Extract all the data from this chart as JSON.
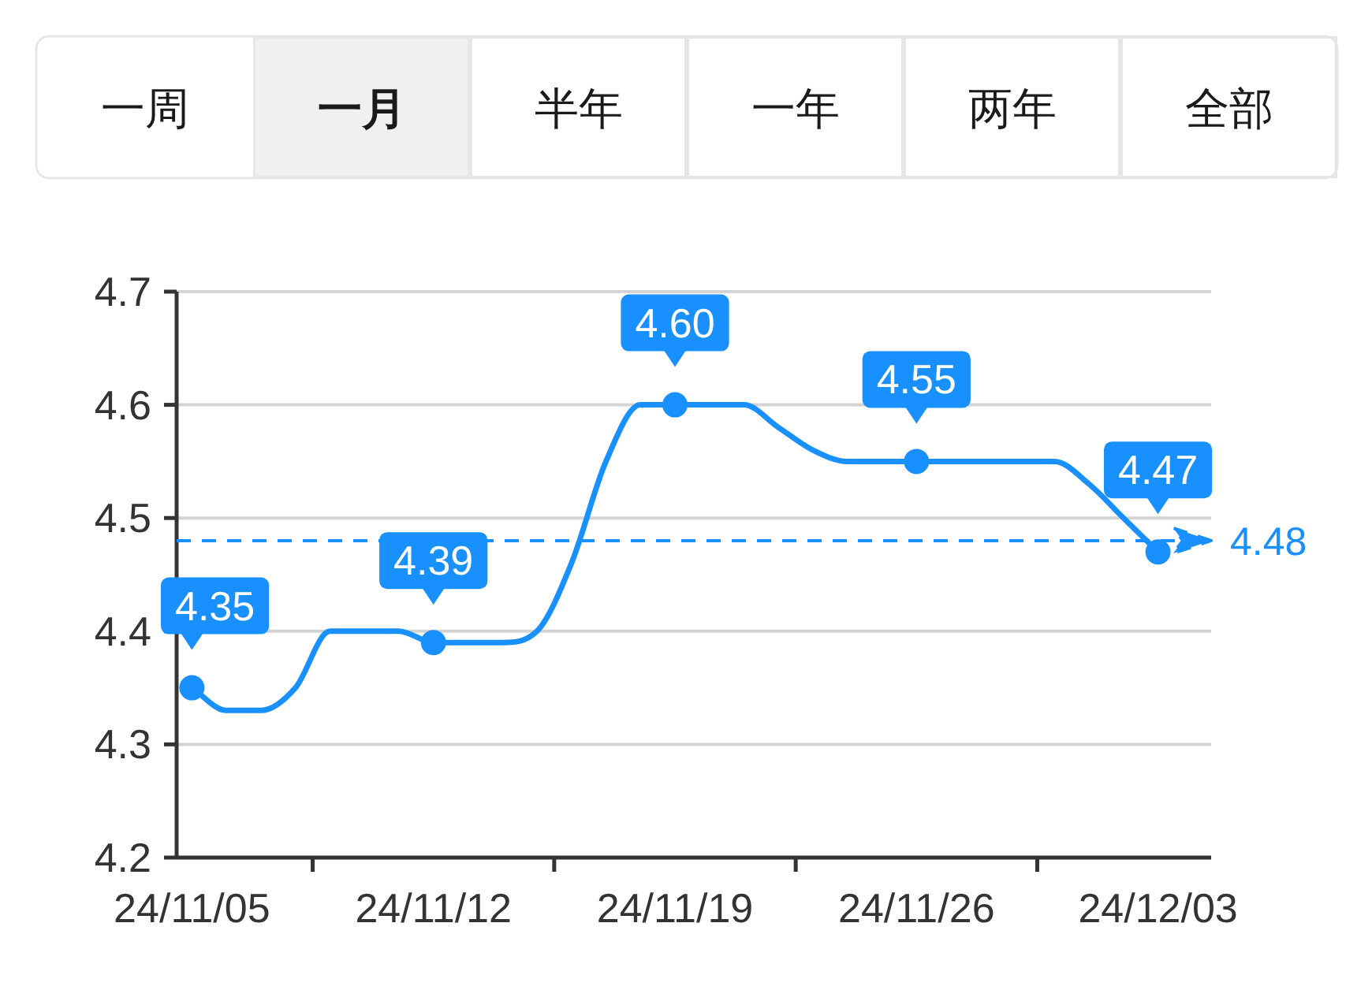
{
  "chart_data": [
    {
      "type": "other",
      "annotations": [
        "一周",
        "一月",
        "半年",
        "一年",
        "两年",
        "全部"
      ]
    },
    {
      "type": "line",
      "categories": [
        "24/11/05",
        null,
        null,
        null,
        null,
        null,
        null,
        "24/11/12",
        null,
        null,
        null,
        null,
        null,
        null,
        "24/11/19",
        null,
        null,
        null,
        null,
        null,
        null,
        "24/11/26",
        null,
        null,
        null,
        null,
        null,
        null,
        "24/12/03"
      ],
      "series": [
        {
          "color": "#1890ff",
          "values": [
            4.35,
            4.33,
            4.33,
            4.35,
            4.4,
            4.4,
            4.4,
            4.39,
            4.39,
            4.39,
            4.4,
            4.46,
            4.55,
            4.6,
            4.6,
            4.6,
            4.6,
            4.58,
            4.56,
            4.55,
            4.55,
            4.55,
            4.55,
            4.55,
            4.55,
            4.55,
            4.53,
            4.5,
            4.47
          ]
        },
        {
          "type": "scatter",
          "marker": "circle",
          "color": "#1890ff",
          "x": [
            "24/11/05",
            "24/11/12",
            "24/11/19",
            "24/11/26",
            "24/12/03"
          ],
          "values": [
            4.35,
            4.39,
            4.6,
            4.55,
            4.47
          ],
          "value_labels": [
            "4.35",
            "4.39",
            "4.60",
            "4.55",
            "4.47"
          ]
        }
      ],
      "ylim": [
        4.2,
        4.7
      ],
      "yticks": [
        4.2,
        4.3,
        4.4,
        4.5,
        4.6,
        4.7
      ],
      "grid": "y",
      "ref_lines": [
        {
          "axis": "y",
          "value": 4.48,
          "label": "4.48",
          "color": "#1890ff",
          "line_style": "dashed"
        }
      ]
    }
  ]
}
